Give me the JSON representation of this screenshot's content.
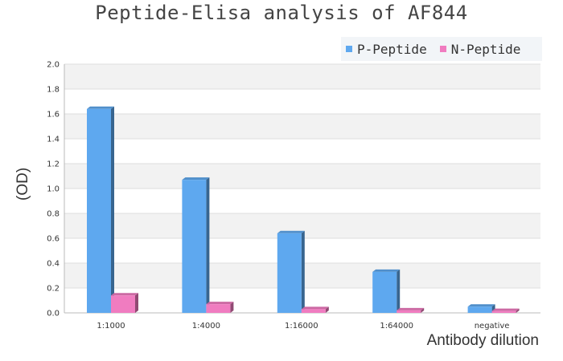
{
  "chart_data": {
    "type": "bar",
    "title": "Peptide-Elisa analysis of AF844",
    "xlabel": "Antibody dilution",
    "ylabel": "(OD)",
    "categories": [
      "1:1000",
      "1:4000",
      "1:16000",
      "1:64000",
      "negative"
    ],
    "series": [
      {
        "name": "P-Peptide",
        "values": [
          1.64,
          1.07,
          0.64,
          0.33,
          0.05
        ],
        "color": "#5ea8ef"
      },
      {
        "name": "N-Peptide",
        "values": [
          0.14,
          0.07,
          0.03,
          0.02,
          0.015
        ],
        "color": "#f07cc0"
      }
    ],
    "ylim": [
      0,
      2.0
    ],
    "yticks": [
      "0.0",
      "0.2",
      "0.4",
      "0.6",
      "0.8",
      "1.0",
      "1.2",
      "1.4",
      "1.6",
      "1.8",
      "2.0"
    ],
    "grid": true,
    "legend_position": "top-right"
  }
}
